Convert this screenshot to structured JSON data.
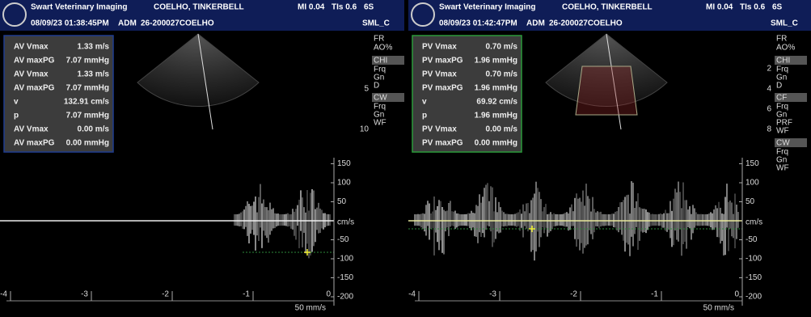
{
  "panels": [
    {
      "header": {
        "org": "Swart Veterinary Imaging",
        "patient": "COELHO, TINKERBELL",
        "mi": "MI 0.04",
        "tis": "TIs 0.6",
        "probe": "6S",
        "datetime": "08/09/23 01:38:45PM",
        "mode": "ADM",
        "patient_id": "26-200027COELHO",
        "preset": "SML_C"
      },
      "measurements": [
        [
          "AV Vmax",
          "1.33 m/s"
        ],
        [
          "AV maxPG",
          "7.07 mmHg"
        ],
        [
          "AV Vmax",
          "1.33 m/s"
        ],
        [
          "AV maxPG",
          "7.07 mmHg"
        ],
        [
          "v",
          "132.91 cm/s"
        ],
        [
          "p",
          "7.07 mmHg"
        ],
        [
          "AV Vmax",
          "0.00 m/s"
        ],
        [
          "AV maxPG",
          "0.00 mmHg"
        ]
      ],
      "side_top": [
        "FR",
        "AO%"
      ],
      "side_groups": [
        {
          "title": "CHI",
          "items": [
            "Frq",
            "Gn",
            "D"
          ]
        },
        {
          "title": "CW",
          "items": [
            "Frq",
            "Gn",
            "WF"
          ]
        }
      ],
      "depth_ticks": [
        5,
        10
      ],
      "velocity_ticks": [
        150,
        100,
        50,
        -50,
        -100,
        -150,
        -200
      ],
      "velocity_unit": "cm/s",
      "time_ticks": [
        -4,
        -3,
        -2,
        -1,
        0
      ],
      "sweep": "50 mm/s"
    },
    {
      "header": {
        "org": "Swart Veterinary Imaging",
        "patient": "COELHO, TINKERBELL",
        "mi": "MI 0.04",
        "tis": "TIs 0.6",
        "probe": "6S",
        "datetime": "08/09/23 01:42:47PM",
        "mode": "ADM",
        "patient_id": "26-200027COELHO",
        "preset": "SML_C"
      },
      "measurements": [
        [
          "PV Vmax",
          "0.70 m/s"
        ],
        [
          "PV maxPG",
          "1.96 mmHg"
        ],
        [
          "PV Vmax",
          "0.70 m/s"
        ],
        [
          "PV maxPG",
          "1.96 mmHg"
        ],
        [
          "v",
          "69.92 cm/s"
        ],
        [
          "p",
          "1.96 mmHg"
        ],
        [
          "PV Vmax",
          "0.00 m/s"
        ],
        [
          "PV maxPG",
          "0.00 mmHg"
        ]
      ],
      "side_top": [
        "FR",
        "AO%"
      ],
      "side_groups": [
        {
          "title": "CHI",
          "items": [
            "Frq",
            "Gn",
            "D"
          ]
        },
        {
          "title": "CF",
          "items": [
            "Frq",
            "Gn",
            "PRF",
            "WF"
          ]
        },
        {
          "title": "CW",
          "items": [
            "Frq",
            "Gn",
            "WF"
          ]
        }
      ],
      "depth_ticks": [
        2,
        4,
        6,
        8
      ],
      "velocity_ticks": [
        150,
        100,
        50,
        -50,
        -100,
        -150,
        -200
      ],
      "velocity_unit": "cm/s",
      "time_ticks": [
        -4,
        -3,
        -2,
        -1,
        0
      ],
      "sweep": "50 mm/s"
    }
  ]
}
